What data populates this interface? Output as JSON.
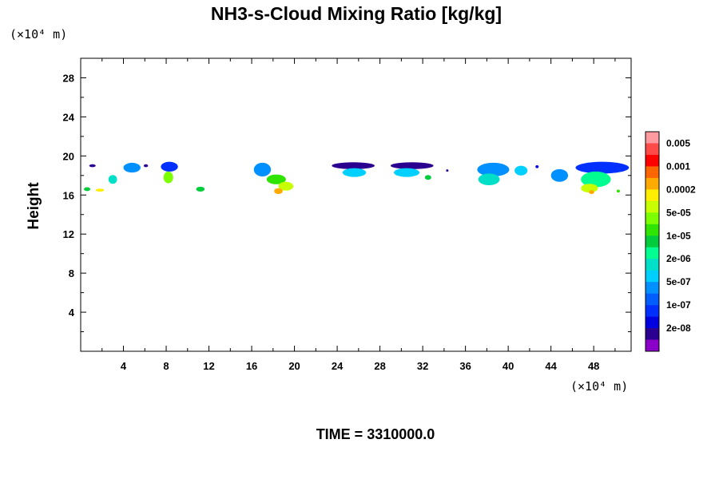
{
  "chart_data": {
    "type": "heatmap",
    "title": "NH3-s-Cloud Mixing Ratio [kg/kg]",
    "ylabel": "Height",
    "xlabel": "",
    "y_unit": "(×10⁴ m)",
    "x_unit": "(×10⁴ m)",
    "xlim": [
      0,
      51.5
    ],
    "ylim": [
      0,
      30
    ],
    "x_ticks": [
      4,
      8,
      12,
      16,
      20,
      24,
      28,
      32,
      36,
      40,
      44,
      48
    ],
    "y_ticks": [
      4,
      8,
      12,
      16,
      20,
      24,
      28
    ],
    "grid": false,
    "footer": "TIME = 3310000.0",
    "colorbar": {
      "labels": [
        "0.005",
        "0.001",
        "0.0002",
        "5e-05",
        "1e-05",
        "2e-06",
        "5e-07",
        "1e-07",
        "2e-08"
      ],
      "colors_top_to_bottom": [
        "#ff9aa0",
        "#ff4a4a",
        "#ff0000",
        "#ff6600",
        "#ffaa00",
        "#ffee00",
        "#c8ff00",
        "#7cff00",
        "#2ee400",
        "#00cc3c",
        "#00ff90",
        "#00e0c8",
        "#00d0ff",
        "#0090ff",
        "#005eff",
        "#0030ff",
        "#0000e0",
        "#2b0090",
        "#8a00c8"
      ]
    },
    "cloud_blobs": [
      {
        "x": 0.6,
        "y": 16.6,
        "w": 0.6,
        "h": 0.4,
        "color": "#00cc3c"
      },
      {
        "x": 1.1,
        "y": 19.0,
        "w": 0.6,
        "h": 0.3,
        "color": "#2b0090"
      },
      {
        "x": 1.8,
        "y": 16.5,
        "w": 0.8,
        "h": 0.3,
        "color": "#ffee00"
      },
      {
        "x": 3.0,
        "y": 17.6,
        "w": 0.8,
        "h": 0.9,
        "color": "#00e0c8"
      },
      {
        "x": 4.8,
        "y": 18.8,
        "w": 1.6,
        "h": 1.0,
        "color": "#0090ff"
      },
      {
        "x": 6.1,
        "y": 19.0,
        "w": 0.4,
        "h": 0.3,
        "color": "#2b0090"
      },
      {
        "x": 8.3,
        "y": 18.9,
        "w": 1.6,
        "h": 1.0,
        "color": "#0030ff"
      },
      {
        "x": 8.2,
        "y": 17.8,
        "w": 0.9,
        "h": 1.2,
        "color": "#7cff00"
      },
      {
        "x": 11.2,
        "y": 16.6,
        "w": 0.8,
        "h": 0.5,
        "color": "#00cc3c"
      },
      {
        "x": 17.0,
        "y": 18.6,
        "w": 1.6,
        "h": 1.4,
        "color": "#0090ff"
      },
      {
        "x": 18.3,
        "y": 17.6,
        "w": 1.8,
        "h": 1.0,
        "color": "#2ee400"
      },
      {
        "x": 19.2,
        "y": 16.9,
        "w": 1.4,
        "h": 0.9,
        "color": "#c8ff00"
      },
      {
        "x": 18.5,
        "y": 16.4,
        "w": 0.8,
        "h": 0.6,
        "color": "#ffaa00"
      },
      {
        "x": 25.5,
        "y": 19.0,
        "w": 4.0,
        "h": 0.7,
        "color": "#2b0090"
      },
      {
        "x": 25.6,
        "y": 18.3,
        "w": 2.2,
        "h": 0.9,
        "color": "#00d0ff"
      },
      {
        "x": 31.0,
        "y": 19.0,
        "w": 4.0,
        "h": 0.7,
        "color": "#2b0090"
      },
      {
        "x": 30.5,
        "y": 18.3,
        "w": 2.4,
        "h": 0.9,
        "color": "#00d0ff"
      },
      {
        "x": 32.5,
        "y": 17.8,
        "w": 0.6,
        "h": 0.5,
        "color": "#00cc3c"
      },
      {
        "x": 34.3,
        "y": 18.5,
        "w": 0.2,
        "h": 0.2,
        "color": "#2b0090"
      },
      {
        "x": 38.6,
        "y": 18.6,
        "w": 3.0,
        "h": 1.4,
        "color": "#0090ff"
      },
      {
        "x": 38.2,
        "y": 17.6,
        "w": 2.0,
        "h": 1.2,
        "color": "#00e0c8"
      },
      {
        "x": 41.2,
        "y": 18.5,
        "w": 1.2,
        "h": 1.0,
        "color": "#00d0ff"
      },
      {
        "x": 42.7,
        "y": 18.9,
        "w": 0.3,
        "h": 0.3,
        "color": "#0000e0"
      },
      {
        "x": 44.8,
        "y": 18.0,
        "w": 1.6,
        "h": 1.3,
        "color": "#0090ff"
      },
      {
        "x": 48.8,
        "y": 18.8,
        "w": 5.0,
        "h": 1.2,
        "color": "#0030ff"
      },
      {
        "x": 48.2,
        "y": 17.6,
        "w": 2.8,
        "h": 1.6,
        "color": "#00ff90"
      },
      {
        "x": 47.6,
        "y": 16.7,
        "w": 1.6,
        "h": 0.9,
        "color": "#c8ff00"
      },
      {
        "x": 47.8,
        "y": 16.3,
        "w": 0.5,
        "h": 0.4,
        "color": "#ffaa00"
      },
      {
        "x": 50.3,
        "y": 16.4,
        "w": 0.3,
        "h": 0.3,
        "color": "#2ee400"
      }
    ]
  }
}
